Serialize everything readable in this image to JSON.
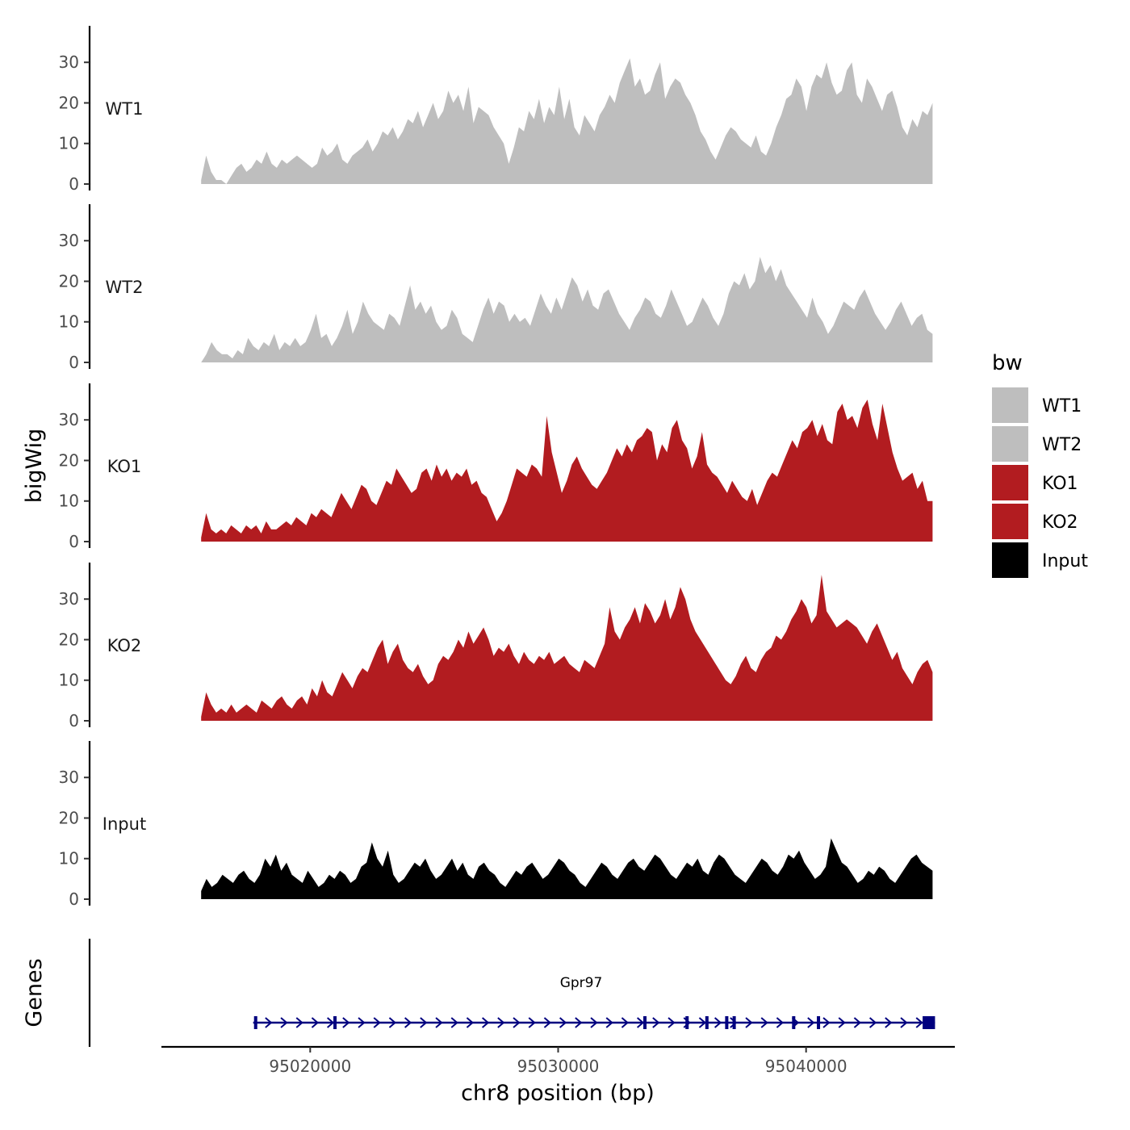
{
  "chart_data": {
    "type": "area",
    "title": "",
    "ylabel": "bigWig",
    "xlabel": "chr8 position (bp)",
    "genes_label": "Genes",
    "xlim": [
      95014000,
      95046000
    ],
    "data_range": [
      95015600,
      95045100
    ],
    "ylim": [
      0,
      39
    ],
    "yticks": [
      0,
      10,
      20,
      30
    ],
    "xticks": [
      95020000,
      95030000,
      95040000
    ],
    "legend": {
      "title": "bw",
      "position": "right",
      "items": [
        {
          "label": "WT1",
          "color": "#bebebe"
        },
        {
          "label": "WT2",
          "color": "#bebebe"
        },
        {
          "label": "KO1",
          "color": "#b21c20"
        },
        {
          "label": "KO2",
          "color": "#b21c20"
        },
        {
          "label": "Input",
          "color": "#000000"
        }
      ]
    },
    "series": [
      {
        "name": "WT1",
        "color": "#bebebe",
        "x_start": 95015600,
        "x_end": 95045100,
        "values": [
          1,
          7,
          3,
          1,
          1,
          0,
          2,
          4,
          5,
          3,
          4,
          6,
          5,
          8,
          5,
          4,
          6,
          5,
          6,
          7,
          6,
          5,
          4,
          5,
          9,
          7,
          8,
          10,
          6,
          5,
          7,
          8,
          9,
          11,
          8,
          10,
          13,
          12,
          14,
          11,
          13,
          16,
          15,
          18,
          14,
          17,
          20,
          16,
          18,
          23,
          20,
          22,
          18,
          24,
          15,
          19,
          18,
          17,
          14,
          12,
          10,
          5,
          9,
          14,
          13,
          18,
          16,
          21,
          15,
          19,
          17,
          24,
          16,
          21,
          14,
          12,
          17,
          15,
          13,
          17,
          19,
          22,
          20,
          25,
          28,
          31,
          24,
          26,
          22,
          23,
          27,
          30,
          21,
          24,
          26,
          25,
          22,
          20,
          17,
          13,
          11,
          8,
          6,
          9,
          12,
          14,
          13,
          11,
          10,
          9,
          12,
          8,
          7,
          10,
          14,
          17,
          21,
          22,
          26,
          24,
          18,
          24,
          27,
          26,
          30,
          25,
          22,
          23,
          28,
          30,
          22,
          20,
          26,
          24,
          21,
          18,
          22,
          23,
          19,
          14,
          12,
          16,
          14,
          18,
          17,
          20
        ]
      },
      {
        "name": "WT2",
        "color": "#bebebe",
        "x_start": 95015600,
        "x_end": 95045100,
        "values": [
          0,
          2,
          5,
          3,
          2,
          2,
          1,
          3,
          2,
          6,
          4,
          3,
          5,
          4,
          7,
          3,
          5,
          4,
          6,
          4,
          5,
          8,
          12,
          6,
          7,
          4,
          6,
          9,
          13,
          7,
          10,
          15,
          12,
          10,
          9,
          8,
          12,
          11,
          9,
          14,
          19,
          13,
          15,
          12,
          14,
          10,
          8,
          9,
          13,
          11,
          7,
          6,
          5,
          9,
          13,
          16,
          12,
          15,
          14,
          10,
          12,
          10,
          11,
          9,
          13,
          17,
          14,
          12,
          16,
          13,
          17,
          21,
          19,
          15,
          18,
          14,
          13,
          17,
          18,
          15,
          12,
          10,
          8,
          11,
          13,
          16,
          15,
          12,
          11,
          14,
          18,
          15,
          12,
          9,
          10,
          13,
          16,
          14,
          11,
          9,
          12,
          17,
          20,
          19,
          22,
          18,
          20,
          26,
          22,
          24,
          20,
          23,
          19,
          17,
          15,
          13,
          11,
          16,
          12,
          10,
          7,
          9,
          12,
          15,
          14,
          13,
          16,
          18,
          15,
          12,
          10,
          8,
          10,
          13,
          15,
          12,
          9,
          11,
          12,
          8,
          7
        ]
      },
      {
        "name": "KO1",
        "color": "#b21c20",
        "x_start": 95015600,
        "x_end": 95045100,
        "values": [
          1,
          7,
          3,
          2,
          3,
          2,
          4,
          3,
          2,
          4,
          3,
          4,
          2,
          5,
          3,
          3,
          4,
          5,
          4,
          6,
          5,
          4,
          7,
          6,
          8,
          7,
          6,
          9,
          12,
          10,
          8,
          11,
          14,
          13,
          10,
          9,
          12,
          15,
          14,
          18,
          16,
          14,
          12,
          13,
          17,
          18,
          15,
          19,
          16,
          18,
          15,
          17,
          16,
          18,
          14,
          15,
          12,
          11,
          8,
          5,
          7,
          10,
          14,
          18,
          17,
          16,
          19,
          18,
          16,
          31,
          22,
          17,
          12,
          15,
          19,
          21,
          18,
          16,
          14,
          13,
          15,
          17,
          20,
          23,
          21,
          24,
          22,
          25,
          26,
          28,
          27,
          20,
          24,
          22,
          28,
          30,
          25,
          23,
          18,
          21,
          27,
          19,
          17,
          16,
          14,
          12,
          15,
          13,
          11,
          10,
          13,
          9,
          12,
          15,
          17,
          16,
          19,
          22,
          25,
          23,
          27,
          28,
          30,
          26,
          29,
          25,
          24,
          32,
          34,
          30,
          31,
          28,
          33,
          35,
          29,
          25,
          34,
          28,
          22,
          18,
          15,
          16,
          17,
          13,
          15,
          10,
          10
        ]
      },
      {
        "name": "KO2",
        "color": "#b21c20",
        "x_start": 95015600,
        "x_end": 95045100,
        "values": [
          1,
          7,
          4,
          2,
          3,
          2,
          4,
          2,
          3,
          4,
          3,
          2,
          5,
          4,
          3,
          5,
          6,
          4,
          3,
          5,
          6,
          4,
          8,
          6,
          10,
          7,
          6,
          9,
          12,
          10,
          8,
          11,
          13,
          12,
          15,
          18,
          20,
          14,
          17,
          19,
          15,
          13,
          12,
          14,
          11,
          9,
          10,
          14,
          16,
          15,
          17,
          20,
          18,
          22,
          19,
          21,
          23,
          20,
          16,
          18,
          17,
          19,
          16,
          14,
          17,
          15,
          14,
          16,
          15,
          17,
          14,
          15,
          16,
          14,
          13,
          12,
          15,
          14,
          13,
          16,
          19,
          28,
          22,
          20,
          23,
          25,
          28,
          24,
          29,
          27,
          24,
          26,
          30,
          25,
          28,
          33,
          30,
          25,
          22,
          20,
          18,
          16,
          14,
          12,
          10,
          9,
          11,
          14,
          16,
          13,
          12,
          15,
          17,
          18,
          21,
          20,
          22,
          25,
          27,
          30,
          28,
          24,
          26,
          36,
          27,
          25,
          23,
          24,
          25,
          24,
          23,
          21,
          19,
          22,
          24,
          21,
          18,
          15,
          17,
          13,
          11,
          9,
          12,
          14,
          15,
          12
        ]
      },
      {
        "name": "Input",
        "color": "#000000",
        "x_start": 95015600,
        "x_end": 95045100,
        "values": [
          2,
          5,
          3,
          4,
          6,
          5,
          4,
          6,
          7,
          5,
          4,
          6,
          10,
          8,
          11,
          7,
          9,
          6,
          5,
          4,
          7,
          5,
          3,
          4,
          6,
          5,
          7,
          6,
          4,
          5,
          8,
          9,
          14,
          10,
          8,
          12,
          6,
          4,
          5,
          7,
          9,
          8,
          10,
          7,
          5,
          6,
          8,
          10,
          7,
          9,
          6,
          5,
          8,
          9,
          7,
          6,
          4,
          3,
          5,
          7,
          6,
          8,
          9,
          7,
          5,
          6,
          8,
          10,
          9,
          7,
          6,
          4,
          3,
          5,
          7,
          9,
          8,
          6,
          5,
          7,
          9,
          10,
          8,
          7,
          9,
          11,
          10,
          8,
          6,
          5,
          7,
          9,
          8,
          10,
          7,
          6,
          9,
          11,
          10,
          8,
          6,
          5,
          4,
          6,
          8,
          10,
          9,
          7,
          6,
          8,
          11,
          10,
          12,
          9,
          7,
          5,
          6,
          8,
          15,
          12,
          9,
          8,
          6,
          4,
          5,
          7,
          6,
          8,
          7,
          5,
          4,
          6,
          8,
          10,
          11,
          9,
          8,
          7
        ]
      }
    ],
    "gene": {
      "name": "Gpr97",
      "color": "#00007f",
      "start": 95017700,
      "end": 95045200,
      "strand": "+",
      "exons": [
        95017800,
        95021000,
        95033500,
        95035200,
        95036000,
        95036800,
        95037100,
        95039500,
        95040500,
        95044700
      ]
    }
  }
}
